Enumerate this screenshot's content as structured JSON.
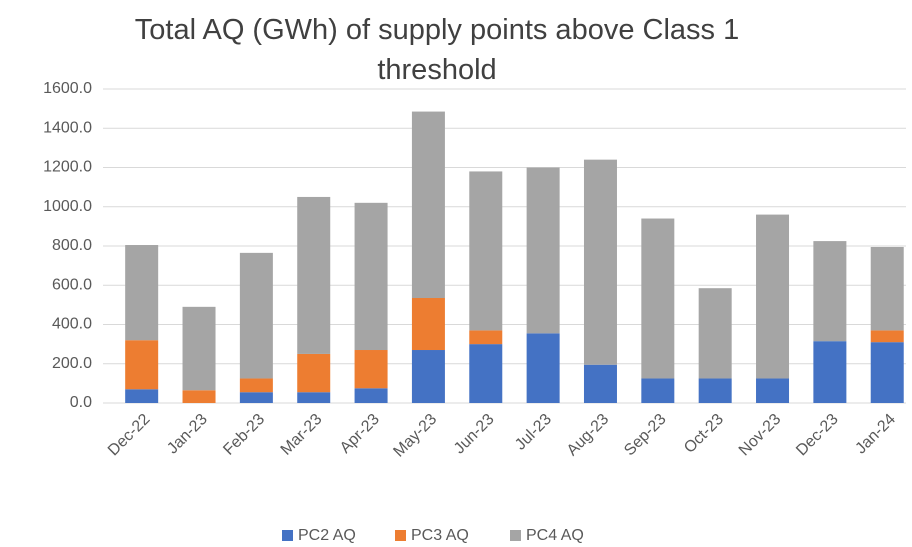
{
  "chart_data": {
    "type": "stacked_bar",
    "title": "Total AQ (GWh) of supply points above Class 1 threshold",
    "categories": [
      "Dec-22",
      "Jan-23",
      "Feb-23",
      "Mar-23",
      "Apr-23",
      "May-23",
      "Jun-23",
      "Jul-23",
      "Aug-23",
      "Sep-23",
      "Oct-23",
      "Nov-23",
      "Dec-23",
      "Jan-24"
    ],
    "series": [
      {
        "name": "PC2 AQ",
        "color": "#4472c4",
        "values": [
          70,
          0,
          55,
          55,
          75,
          270,
          300,
          355,
          195,
          125,
          125,
          125,
          315,
          310
        ]
      },
      {
        "name": "PC3 AQ",
        "color": "#ed7d31",
        "values": [
          250,
          65,
          70,
          195,
          195,
          265,
          70,
          0,
          0,
          0,
          0,
          0,
          0,
          60
        ]
      },
      {
        "name": "PC4 AQ",
        "color": "#a5a5a5",
        "values": [
          485,
          425,
          640,
          800,
          750,
          950,
          810,
          845,
          1045,
          815,
          460,
          835,
          510,
          425
        ]
      }
    ],
    "ylim": [
      0,
      1600
    ],
    "yticks": [
      {
        "value": 0,
        "label": "0.0"
      },
      {
        "value": 200,
        "label": "200.0"
      },
      {
        "value": 400,
        "label": "400.0"
      },
      {
        "value": 600,
        "label": "600.0"
      },
      {
        "value": 800,
        "label": "800.0"
      },
      {
        "value": 1000,
        "label": "1000.0"
      },
      {
        "value": 1200,
        "label": "1200.0"
      },
      {
        "value": 1400,
        "label": "1400.0"
      },
      {
        "value": 1600,
        "label": "1600.0"
      }
    ],
    "grid": true,
    "legend": "bottom"
  }
}
